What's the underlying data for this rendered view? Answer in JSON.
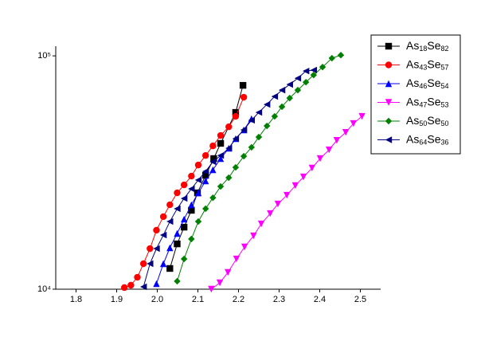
{
  "chart_data": {
    "type": "line",
    "log_y": true,
    "xlim": [
      1.75,
      2.55
    ],
    "ylim": [
      10000,
      110000
    ],
    "xticks": [
      1.8,
      1.9,
      {
        "value": 2,
        "label": "2.0"
      },
      2.1,
      2.2,
      2.3,
      2.4,
      2.5
    ],
    "yticks": [
      {
        "value": 10000,
        "label": "10⁴"
      },
      {
        "value": 100000,
        "label": "10⁵"
      }
    ],
    "legend": "upper-right",
    "series": [
      {
        "name": "As18Se82",
        "color": "#000000",
        "marker": "square",
        "x": [
          2.031,
          2.049,
          2.066,
          2.084,
          2.099,
          2.119,
          2.139,
          2.156,
          2.193,
          2.211
        ],
        "values": [
          12270,
          15640,
          18450,
          21780,
          25880,
          30760,
          36300,
          42170,
          57240,
          74760
        ]
      },
      {
        "name": "As43Se57",
        "color": "#ff0000",
        "marker": "circle",
        "x": [
          1.919,
          1.935,
          1.951,
          1.966,
          1.982,
          1.998,
          2.015,
          2.031,
          2.049,
          2.066,
          2.084,
          2.101,
          2.119,
          2.137,
          2.156,
          2.176,
          2.193,
          2.213
        ],
        "values": [
          10160,
          10400,
          11250,
          12860,
          14930,
          17900,
          20460,
          23000,
          25880,
          27990,
          30530,
          34060,
          37420,
          41140,
          45590,
          49650,
          55050,
          66500
        ]
      },
      {
        "name": "As46Se54",
        "color": "#0000ff",
        "marker": "triangle-up",
        "x": [
          1.998,
          2.015,
          2.031,
          2.049,
          2.066,
          2.084,
          2.101,
          2.119,
          2.137,
          2.156,
          2.176,
          2.193,
          2.213,
          2.232
        ],
        "values": [
          10560,
          12860,
          15050,
          17340,
          19960,
          23000,
          25880,
          29110,
          32500,
          36300,
          40180,
          44160,
          48170,
          53730
        ]
      },
      {
        "name": "As47Se53",
        "color": "#ff00ff",
        "marker": "triangle-down",
        "x": [
          2.133,
          2.154,
          2.174,
          2.195,
          2.215,
          2.237,
          2.256,
          2.278,
          2.297,
          2.319,
          2.34,
          2.36,
          2.381,
          2.401,
          2.423,
          2.442,
          2.464,
          2.483,
          2.504
        ],
        "values": [
          10000,
          10650,
          11800,
          13480,
          15170,
          16930,
          19050,
          21090,
          23180,
          25270,
          27800,
          30270,
          33040,
          36300,
          39550,
          43450,
          46990,
          51290,
          55050
        ]
      },
      {
        "name": "As50Se50",
        "color": "#008000",
        "marker": "diamond",
        "x": [
          2.049,
          2.066,
          2.084,
          2.101,
          2.119,
          2.137,
          2.156,
          2.176,
          2.193,
          2.213,
          2.232,
          2.25,
          2.27,
          2.289,
          2.307,
          2.326,
          2.346,
          2.366,
          2.385,
          2.407,
          2.43,
          2.452
        ],
        "values": [
          10820,
          13480,
          16410,
          19500,
          22130,
          24660,
          27560,
          30050,
          33280,
          37150,
          40550,
          44870,
          50090,
          55050,
          60530,
          65920,
          71310,
          77130,
          82790,
          89540,
          97720,
          100700
        ]
      },
      {
        "name": "As64Se36",
        "color": "#000080",
        "marker": "triangle-left",
        "x": [
          1.966,
          1.982,
          1.998,
          2.015,
          2.031,
          2.049,
          2.066,
          2.084,
          2.101,
          2.119,
          2.137,
          2.156,
          2.176,
          2.193,
          2.213,
          2.232,
          2.25,
          2.27,
          2.289,
          2.307,
          2.326,
          2.346,
          2.366,
          2.385
        ],
        "values": [
          10240,
          12860,
          14930,
          17060,
          19500,
          22130,
          24490,
          26920,
          29370,
          31990,
          35160,
          37420,
          40180,
          44160,
          48170,
          52960,
          57240,
          61930,
          66990,
          71310,
          75390,
          80180,
          86100,
          86900
        ]
      }
    ]
  }
}
